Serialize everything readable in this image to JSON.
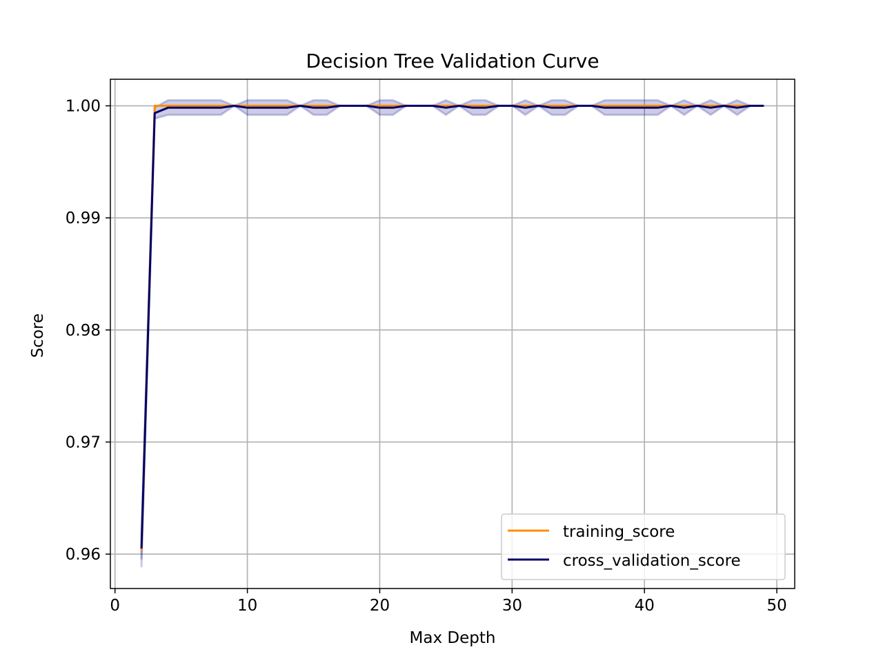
{
  "chart_data": {
    "type": "line",
    "title": "Decision Tree Validation Curve",
    "xlabel": "Max Depth",
    "ylabel": "Score",
    "xlim": [
      -0.35,
      51.35
    ],
    "ylim": [
      0.95693,
      1.00237
    ],
    "xticks": [
      0,
      10,
      20,
      30,
      40,
      50
    ],
    "xtick_labels": [
      "0",
      "10",
      "20",
      "30",
      "40",
      "50"
    ],
    "yticks": [
      0.96,
      0.97,
      0.98,
      0.99,
      1.0
    ],
    "ytick_labels": [
      "0.96",
      "0.97",
      "0.98",
      "0.99",
      "1.00"
    ],
    "grid": true,
    "legend_position": "lower-right",
    "x": [
      2,
      3,
      4,
      5,
      6,
      7,
      8,
      9,
      10,
      11,
      12,
      13,
      14,
      15,
      16,
      17,
      18,
      19,
      20,
      21,
      22,
      23,
      24,
      25,
      26,
      27,
      28,
      29,
      30,
      31,
      32,
      33,
      34,
      35,
      36,
      37,
      38,
      39,
      40,
      41,
      42,
      43,
      44,
      45,
      46,
      47,
      48,
      49
    ],
    "series": [
      {
        "name": "training_score",
        "color": "#ff8c00",
        "values": [
          0.9603,
          1.0,
          1.0,
          1.0,
          1.0,
          1.0,
          1.0,
          1.0,
          1.0,
          1.0,
          1.0,
          1.0,
          1.0,
          1.0,
          1.0,
          1.0,
          1.0,
          1.0,
          1.0,
          1.0,
          1.0,
          1.0,
          1.0,
          1.0,
          1.0,
          1.0,
          1.0,
          1.0,
          1.0,
          1.0,
          1.0,
          1.0,
          1.0,
          1.0,
          1.0,
          1.0,
          1.0,
          1.0,
          1.0,
          1.0,
          1.0,
          1.0,
          1.0,
          1.0,
          1.0,
          1.0,
          1.0,
          1.0
        ],
        "band_lower": [
          0.9596,
          1.0,
          1.0,
          1.0,
          1.0,
          1.0,
          1.0,
          1.0,
          1.0,
          1.0,
          1.0,
          1.0,
          1.0,
          1.0,
          1.0,
          1.0,
          1.0,
          1.0,
          1.0,
          1.0,
          1.0,
          1.0,
          1.0,
          1.0,
          1.0,
          1.0,
          1.0,
          1.0,
          1.0,
          1.0,
          1.0,
          1.0,
          1.0,
          1.0,
          1.0,
          1.0,
          1.0,
          1.0,
          1.0,
          1.0,
          1.0,
          1.0,
          1.0,
          1.0,
          1.0,
          1.0,
          1.0,
          1.0
        ],
        "band_upper": [
          0.961,
          1.0,
          1.0,
          1.0,
          1.0,
          1.0,
          1.0,
          1.0,
          1.0,
          1.0,
          1.0,
          1.0,
          1.0,
          1.0,
          1.0,
          1.0,
          1.0,
          1.0,
          1.0,
          1.0,
          1.0,
          1.0,
          1.0,
          1.0,
          1.0,
          1.0,
          1.0,
          1.0,
          1.0,
          1.0,
          1.0,
          1.0,
          1.0,
          1.0,
          1.0,
          1.0,
          1.0,
          1.0,
          1.0,
          1.0,
          1.0,
          1.0,
          1.0,
          1.0,
          1.0,
          1.0,
          1.0,
          1.0
        ]
      },
      {
        "name": "cross_validation_score",
        "color": "#000066",
        "values": [
          0.9605,
          0.99935,
          0.99983,
          0.99983,
          0.99983,
          0.99983,
          0.99983,
          1.0,
          0.99983,
          0.99983,
          0.99983,
          0.99983,
          1.0,
          0.99983,
          0.99983,
          1.0,
          1.0,
          1.0,
          0.99983,
          0.99983,
          1.0,
          1.0,
          1.0,
          0.99983,
          1.0,
          0.99983,
          0.99983,
          1.0,
          1.0,
          0.99983,
          1.0,
          0.99983,
          0.99983,
          1.0,
          1.0,
          0.99983,
          0.99983,
          0.99983,
          0.99983,
          0.99983,
          1.0,
          0.99983,
          1.0,
          0.99983,
          1.0,
          0.99983,
          1.0,
          1.0
        ],
        "band_lower": [
          0.9589,
          0.99885,
          0.99919,
          0.99919,
          0.99919,
          0.99919,
          0.99919,
          1.0,
          0.99919,
          0.99919,
          0.99919,
          0.99919,
          1.0,
          0.99919,
          0.99919,
          1.0,
          1.0,
          1.0,
          0.99919,
          0.99919,
          1.0,
          1.0,
          1.0,
          0.99919,
          1.0,
          0.99919,
          0.99919,
          1.0,
          1.0,
          0.99919,
          1.0,
          0.99919,
          0.99919,
          1.0,
          1.0,
          0.99919,
          0.99919,
          0.99919,
          0.99919,
          0.99919,
          1.0,
          0.99919,
          1.0,
          0.99919,
          1.0,
          0.99919,
          1.0,
          1.0
        ],
        "band_upper": [
          0.9621,
          0.99985,
          1.0005,
          1.0005,
          1.0005,
          1.0005,
          1.0005,
          1.0,
          1.0005,
          1.0005,
          1.0005,
          1.0005,
          1.0,
          1.0005,
          1.0005,
          1.0,
          1.0,
          1.0,
          1.0005,
          1.0005,
          1.0,
          1.0,
          1.0,
          1.0005,
          1.0,
          1.0005,
          1.0005,
          1.0,
          1.0,
          1.0005,
          1.0,
          1.0005,
          1.0005,
          1.0,
          1.0,
          1.0005,
          1.0005,
          1.0005,
          1.0005,
          1.0005,
          1.0,
          1.0005,
          1.0,
          1.0005,
          1.0,
          1.0005,
          1.0,
          1.0
        ]
      }
    ],
    "band_color": "#000080"
  }
}
